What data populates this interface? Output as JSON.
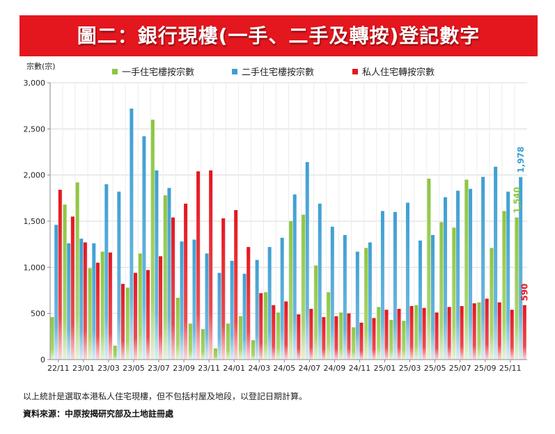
{
  "title": "圖二：銀行現樓(一手、二手及轉按)登記數字",
  "footnote": "以上統計是選取本港私人住宅現樓，但不包括村屋及地段，以登記日期計算。",
  "source": "資料來源：中原按揭研究部及土地註冊處",
  "colors": {
    "first_hand": "#8cc63f",
    "second_hand": "#3f9fd2",
    "transfer": "#e4161e",
    "title_bg": "#e4161e"
  },
  "chart_data": {
    "type": "bar",
    "ylabel": "宗數(宗)",
    "ylim": [
      0,
      3000
    ],
    "yticks": [
      0,
      500,
      1000,
      1500,
      2000,
      2500,
      3000
    ],
    "ytick_labels": [
      "0",
      "500",
      "1,000",
      "1,500",
      "2,000",
      "2,500",
      "3,000"
    ],
    "grid": true,
    "legend_position": "top",
    "categories": [
      "22/11",
      "22/12",
      "23/01",
      "23/02",
      "23/03",
      "23/04",
      "23/05",
      "23/06",
      "23/07",
      "23/08",
      "23/09",
      "23/10",
      "23/11",
      "23/12",
      "24/01",
      "24/02",
      "24/03",
      "24/04",
      "24/05",
      "24/06",
      "24/07",
      "24/08",
      "24/09",
      "24/10",
      "24/11",
      "24/12",
      "25/01",
      "25/02",
      "25/03",
      "25/04",
      "25/05",
      "25/06",
      "25/07",
      "25/08",
      "25/09",
      "25/10",
      "25/11",
      "25/12"
    ],
    "xtick_labels": [
      "22/11",
      "23/01",
      "23/03",
      "23/05",
      "23/07",
      "23/09",
      "23/11",
      "24/01",
      "24/03",
      "24/05",
      "24/07",
      "24/09",
      "24/11",
      "25/01",
      "25/03",
      "25/05",
      "25/07",
      "25/09",
      "25/11"
    ],
    "series": [
      {
        "name": "一手住宅樓按宗數",
        "key": "first_hand",
        "values": [
          460,
          1680,
          1920,
          990,
          1170,
          150,
          780,
          1150,
          2600,
          1780,
          670,
          390,
          330,
          120,
          390,
          470,
          210,
          730,
          510,
          1500,
          1570,
          1020,
          730,
          510,
          350,
          1210,
          570,
          430,
          420,
          590,
          1960,
          1490,
          1430,
          1950,
          620,
          1210,
          1610,
          1540
        ]
      },
      {
        "name": "二手住宅樓按宗數",
        "key": "second_hand",
        "values": [
          1460,
          1260,
          1310,
          1260,
          1900,
          1820,
          2720,
          2420,
          2050,
          1860,
          1280,
          1300,
          1150,
          940,
          1070,
          930,
          1080,
          1220,
          1320,
          1790,
          2140,
          1690,
          1440,
          1350,
          1170,
          1270,
          1610,
          1600,
          1700,
          1290,
          1350,
          1760,
          1830,
          1850,
          1980,
          2090,
          1820,
          1978
        ]
      },
      {
        "name": "私人住宅轉按宗數",
        "key": "transfer",
        "values": [
          1840,
          1550,
          1270,
          1050,
          1160,
          820,
          940,
          970,
          1120,
          1540,
          1690,
          2040,
          2050,
          1530,
          1620,
          1220,
          720,
          590,
          630,
          490,
          550,
          460,
          470,
          500,
          400,
          450,
          540,
          550,
          580,
          560,
          510,
          570,
          580,
          610,
          660,
          620,
          540,
          590
        ]
      }
    ],
    "annotations": [
      {
        "series": "second_hand",
        "category": "25/12",
        "text": "1,978"
      },
      {
        "series": "first_hand",
        "category": "25/12",
        "text": "1,540"
      },
      {
        "series": "transfer",
        "category": "25/12",
        "text": "590"
      }
    ]
  }
}
